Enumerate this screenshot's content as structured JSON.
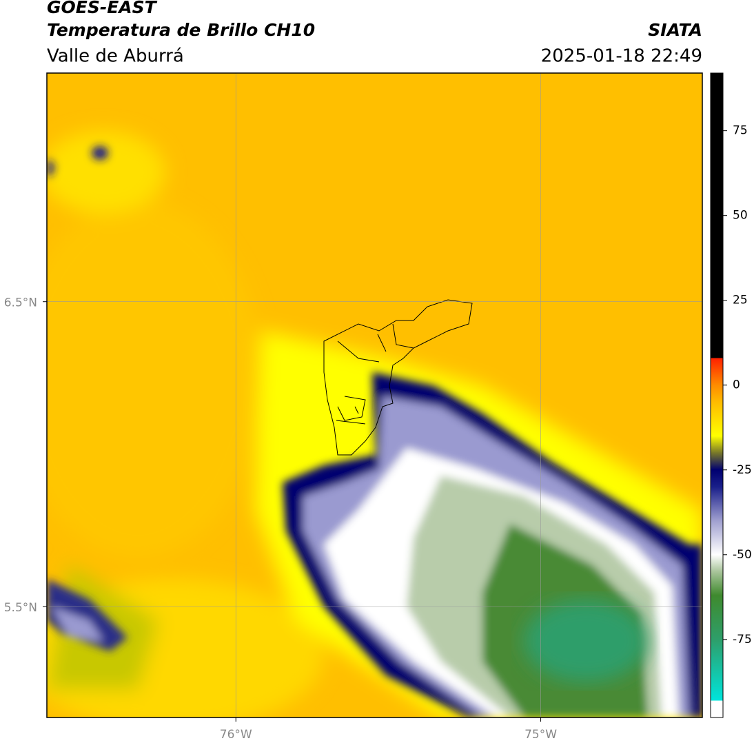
{
  "header": {
    "title": "GOES-EAST",
    "subtitle": "Temperatura de Brillo CH10",
    "source": "SIATA",
    "region": "Valle de Aburrá",
    "datetime": "2025-01-18 22:49"
  },
  "map": {
    "xlim": [
      -76.62,
      -74.47
    ],
    "ylim": [
      5.136,
      7.25
    ],
    "xticks": [
      {
        "value": -76,
        "label": "76°W"
      },
      {
        "value": -75,
        "label": "75°W"
      }
    ],
    "yticks": [
      {
        "value": 6.5,
        "label": "6.5°N"
      },
      {
        "value": 5.5,
        "label": "5.5°N"
      }
    ],
    "grid": true
  },
  "colorbar": {
    "range": [
      -98,
      92
    ],
    "ticks": [
      75,
      50,
      25,
      0,
      -25,
      -50,
      -75
    ],
    "stops": [
      {
        "value": -98,
        "color": "#ffffff"
      },
      {
        "value": -93,
        "color": "#ffffff"
      },
      {
        "value": -93,
        "color": "#00e5dc"
      },
      {
        "value": -75,
        "color": "#2e9e6a"
      },
      {
        "value": -62,
        "color": "#3f8a2e"
      },
      {
        "value": -55,
        "color": "#a8c49a"
      },
      {
        "value": -50,
        "color": "#ffffff"
      },
      {
        "value": -40,
        "color": "#a0a0d0"
      },
      {
        "value": -30,
        "color": "#1a1f8a"
      },
      {
        "value": -25,
        "color": "#000070"
      },
      {
        "value": -20,
        "color": "#77772a"
      },
      {
        "value": -15,
        "color": "#ffff00"
      },
      {
        "value": -5,
        "color": "#ffbb00"
      },
      {
        "value": 0,
        "color": "#ff8c00"
      },
      {
        "value": 8,
        "color": "#ff2000"
      },
      {
        "value": 8,
        "color": "#000000"
      },
      {
        "value": 92,
        "color": "#000000"
      }
    ]
  }
}
